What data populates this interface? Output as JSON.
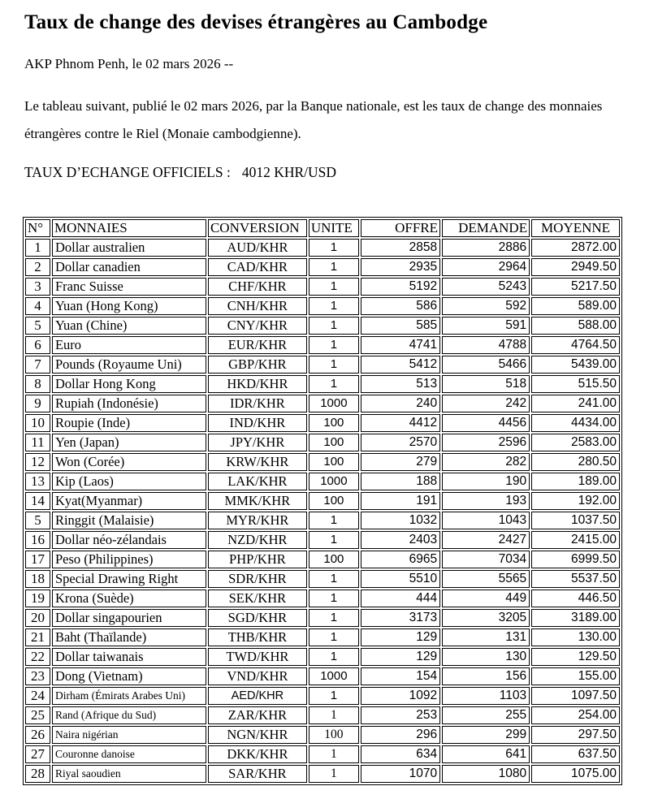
{
  "document": {
    "title": "Taux de change des devises étrangères au Cambodge",
    "dateline": "AKP Phnom Penh, le 02 mars 2026 --",
    "intro": "Le tableau suivant, publié le 02 mars 2026, par la Banque nationale, est les taux de change des monnaies étrangères contre le Riel (Monaie cambodgienne).",
    "official_rate_label": "TAUX D’ECHANGE OFFICIELS :",
    "official_rate_value": "4012 KHR/USD"
  },
  "table": {
    "headers": [
      "N°",
      "MONNAIES",
      "CONVERSION",
      "UNITE",
      "OFFRE",
      "DEMANDE",
      "MOYENNE"
    ],
    "rows": [
      [
        "1",
        "Dollar australien",
        "AUD/KHR",
        "1",
        "2858",
        "2886",
        "2872.00"
      ],
      [
        "2",
        "Dollar canadien",
        "CAD/KHR",
        "1",
        "2935",
        "2964",
        "2949.50"
      ],
      [
        "3",
        "Franc Suisse",
        "CHF/KHR",
        "1",
        "5192",
        "5243",
        "5217.50"
      ],
      [
        "4",
        "Yuan (Hong Kong)",
        "CNH/KHR",
        "1",
        "586",
        "592",
        "589.00"
      ],
      [
        "5",
        "Yuan (Chine)",
        "CNY/KHR",
        "1",
        "585",
        "591",
        "588.00"
      ],
      [
        "6",
        "Euro",
        "EUR/KHR",
        "1",
        "4741",
        "4788",
        "4764.50"
      ],
      [
        "7",
        "Pounds (Royaume Uni)",
        "GBP/KHR",
        "1",
        "5412",
        "5466",
        "5439.00"
      ],
      [
        "8",
        "Dollar Hong Kong",
        "HKD/KHR",
        "1",
        "513",
        "518",
        "515.50"
      ],
      [
        "9",
        "Rupiah (Indonésie)",
        "IDR/KHR",
        "1000",
        "240",
        "242",
        "241.00"
      ],
      [
        "10",
        "Roupie (Inde)",
        "IND/KHR",
        "100",
        "4412",
        "4456",
        "4434.00"
      ],
      [
        "11",
        "Yen (Japan)",
        "JPY/KHR",
        "100",
        "2570",
        "2596",
        "2583.00"
      ],
      [
        "12",
        "Won (Corée)",
        "KRW/KHR",
        "100",
        "279",
        "282",
        "280.50"
      ],
      [
        "13",
        "Kip (Laos)",
        "LAK/KHR",
        "1000",
        "188",
        "190",
        "189.00"
      ],
      [
        "14",
        "Kyat(Myanmar)",
        "MMK/KHR",
        "100",
        "191",
        "193",
        "192.00"
      ],
      [
        "5",
        "Ringgit (Malaisie)",
        "MYR/KHR",
        "1",
        "1032",
        "1043",
        "1037.50"
      ],
      [
        "16",
        "Dollar néo-zélandais",
        "NZD/KHR",
        "1",
        "2403",
        "2427",
        "2415.00"
      ],
      [
        "17",
        "Peso (Philippines)",
        "PHP/KHR",
        "100",
        "6965",
        "7034",
        "6999.50"
      ],
      [
        "18",
        "Special Drawing Right",
        "SDR/KHR",
        "1",
        "5510",
        "5565",
        "5537.50"
      ],
      [
        "19",
        "Krona (Suède)",
        "SEK/KHR",
        "1",
        "444",
        "449",
        "446.50"
      ],
      [
        "20",
        "Dollar singapourien",
        "SGD/KHR",
        "1",
        "3173",
        "3205",
        "3189.00"
      ],
      [
        "21",
        "Baht (Thaïlande)",
        "THB/KHR",
        "1",
        "129",
        "131",
        "130.00"
      ],
      [
        "22",
        "Dollar taiwanais",
        "TWD/KHR",
        "1",
        "129",
        "130",
        "129.50"
      ],
      [
        "23",
        "Dong (Vietnam)",
        "VND/KHR",
        "1000",
        "154",
        "156",
        "155.00"
      ],
      [
        "24",
        "Dirham (Émirats Arabes Uni)",
        "AED/KHR",
        "1",
        "1092",
        "1103",
        "1097.50"
      ],
      [
        "25",
        "Rand (Afrique du Sud)",
        "ZAR/KHR",
        "1",
        "253",
        "255",
        "254.00"
      ],
      [
        "26",
        "Naira nigérian",
        "NGN/KHR",
        "100",
        "296",
        "299",
        "297.50"
      ],
      [
        "27",
        "Couronne danoise",
        "DKK/KHR",
        "1",
        "634",
        "641",
        "637.50"
      ],
      [
        "28",
        "Riyal saoudien",
        "SAR/KHR",
        "1",
        "1070",
        "1080",
        "1075.00"
      ]
    ]
  },
  "colors": {
    "text": "#000000",
    "border": "#000000",
    "background": "#ffffff"
  }
}
